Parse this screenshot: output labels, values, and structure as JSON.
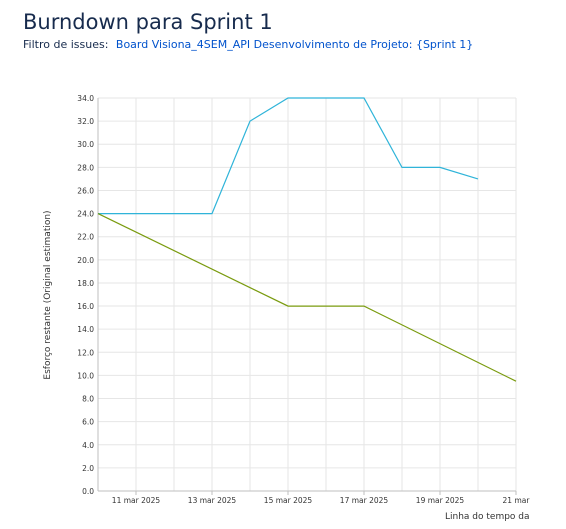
{
  "header": {
    "title": "Burndown para Sprint 1",
    "filter_label": "Filtro de issues:",
    "filter_value": "Board Visiona_4SEM_API Desenvolvimento de Projeto: {Sprint 1}"
  },
  "colors": {
    "remaining": "#2fb4d9",
    "guideline": "#7a9b0f",
    "grid": "#e6e6e6",
    "axis": "#bfbfbf",
    "text": "#333333",
    "link": "#0052cc"
  },
  "chart_data": {
    "type": "line",
    "title": "",
    "ylabel": "Esforço restante (Original estimation)",
    "xlabel": "Linha do tempo da",
    "ylim": [
      0,
      34
    ],
    "xlim": [
      "2025-03-10",
      "2025-03-21"
    ],
    "y_ticks": [
      "0.0",
      "2.0",
      "4.0",
      "6.0",
      "8.0",
      "10.0",
      "12.0",
      "14.0",
      "16.0",
      "18.0",
      "20.0",
      "22.0",
      "24.0",
      "26.0",
      "28.0",
      "30.0",
      "32.0",
      "34.0"
    ],
    "x_ticks": [
      {
        "date": "2025-03-11",
        "label": "11 mar 2025"
      },
      {
        "date": "2025-03-13",
        "label": "13 mar 2025"
      },
      {
        "date": "2025-03-15",
        "label": "15 mar 2025"
      },
      {
        "date": "2025-03-17",
        "label": "17 mar 2025"
      },
      {
        "date": "2025-03-19",
        "label": "19 mar 2025"
      },
      {
        "date": "2025-03-21",
        "label": "21 mar"
      }
    ],
    "grid": true,
    "series": [
      {
        "color": "#2fb4d9",
        "points": [
          [
            "2025-03-10",
            24
          ],
          [
            "2025-03-13",
            24
          ],
          [
            "2025-03-14",
            32
          ],
          [
            "2025-03-15",
            34
          ],
          [
            "2025-03-17",
            34
          ],
          [
            "2025-03-18",
            28
          ],
          [
            "2025-03-19",
            28
          ],
          [
            "2025-03-20",
            27
          ]
        ]
      },
      {
        "color": "#7a9b0f",
        "points": [
          [
            "2025-03-10",
            24
          ],
          [
            "2025-03-15",
            16
          ],
          [
            "2025-03-17",
            16
          ],
          [
            "2025-03-21",
            9.5
          ]
        ]
      }
    ]
  }
}
